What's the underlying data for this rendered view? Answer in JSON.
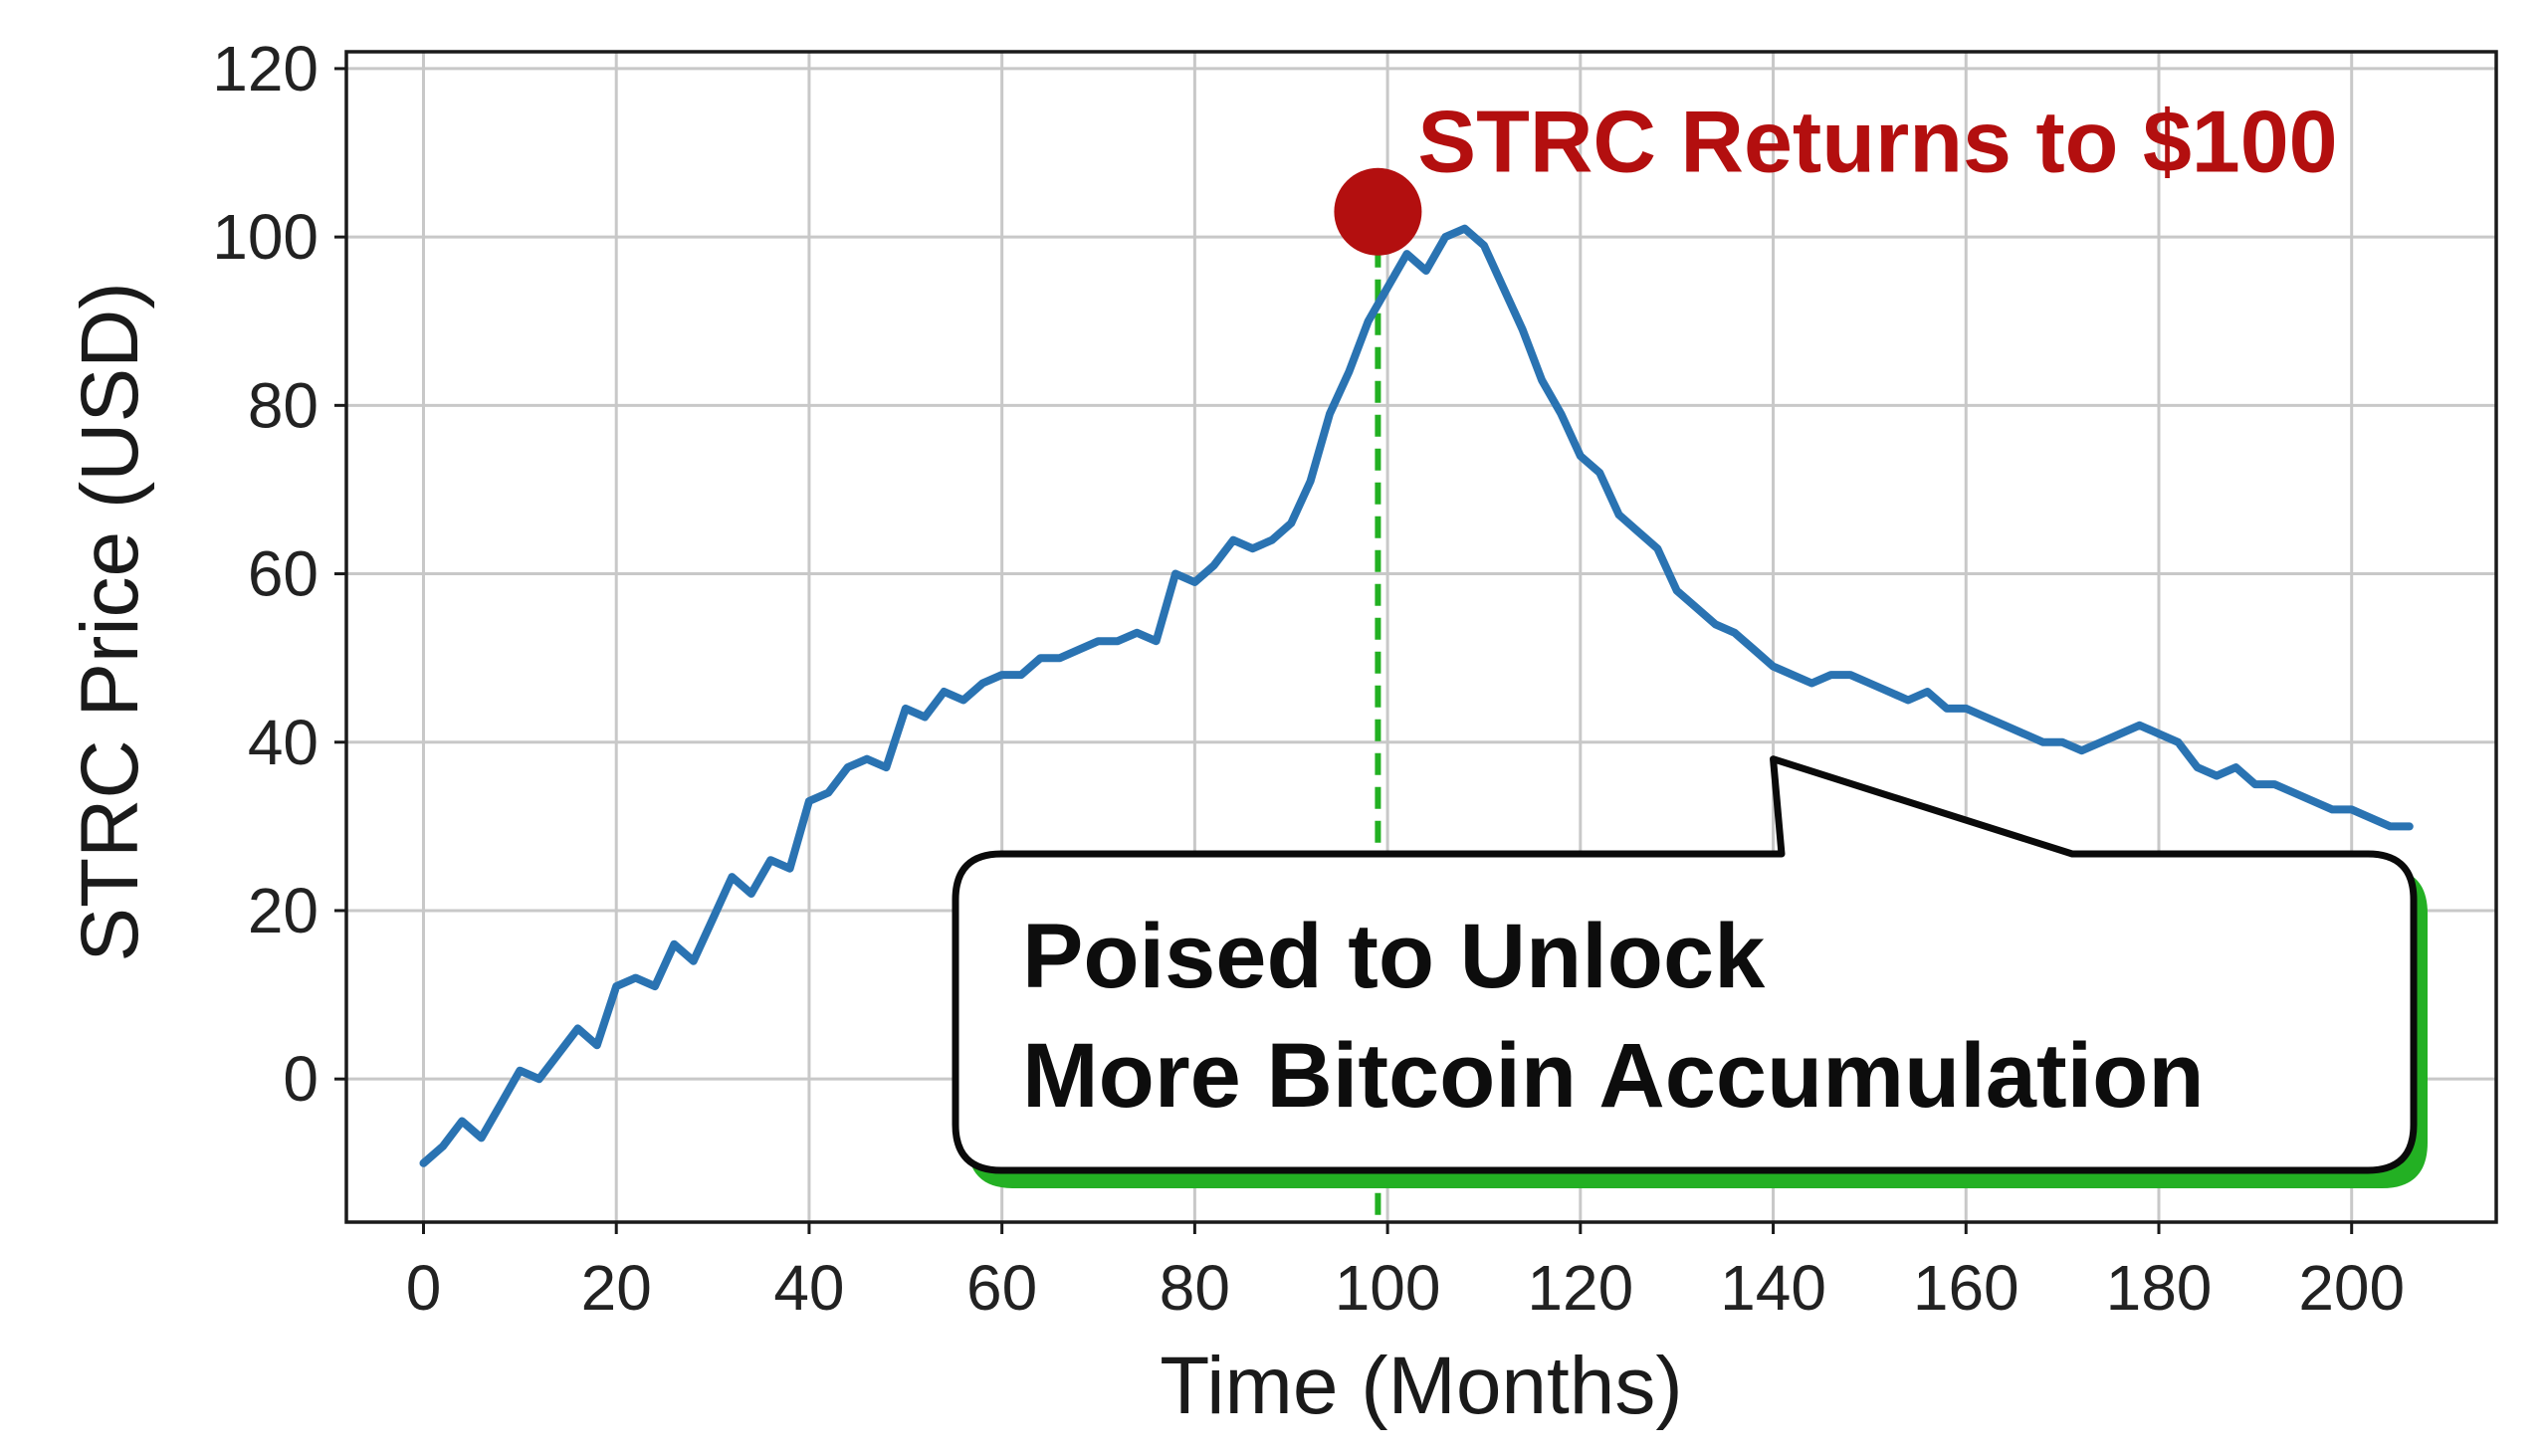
{
  "chart_data": {
    "type": "line",
    "xlabel": "Time (Months)",
    "ylabel": "STRC Price (USD)",
    "xlim": [
      -8,
      215
    ],
    "ylim": [
      -17,
      122
    ],
    "x_ticks": [
      0,
      20,
      40,
      60,
      80,
      100,
      120,
      140,
      160,
      180,
      200
    ],
    "x_tick_labels": [
      "0",
      "20",
      "40",
      "60",
      "80",
      "100",
      "120",
      "140",
      "160",
      "180",
      "200"
    ],
    "y_ticks": [
      0,
      20,
      40,
      60,
      80,
      100,
      120
    ],
    "y_tick_labels": [
      "0",
      "20",
      "40",
      "60",
      "80",
      "100",
      "120"
    ],
    "grid": true,
    "series": [
      {
        "color": "#2a73b2",
        "x": [
          0,
          2,
          4,
          6,
          8,
          10,
          12,
          14,
          16,
          18,
          20,
          22,
          24,
          26,
          28,
          30,
          32,
          34,
          36,
          38,
          40,
          42,
          44,
          46,
          48,
          50,
          52,
          54,
          56,
          58,
          60,
          62,
          64,
          66,
          68,
          70,
          72,
          74,
          76,
          78,
          80,
          82,
          84,
          86,
          88,
          90,
          92,
          94,
          96,
          98,
          100,
          102,
          104,
          106,
          108,
          110,
          112,
          114,
          116,
          118,
          120,
          122,
          124,
          126,
          128,
          130,
          132,
          134,
          136,
          138,
          140,
          142,
          144,
          146,
          148,
          150,
          152,
          154,
          156,
          158,
          160,
          162,
          164,
          166,
          168,
          170,
          172,
          174,
          176,
          178,
          180,
          182,
          184,
          186,
          188,
          190,
          192,
          194,
          196,
          198,
          200,
          202,
          204,
          206
        ],
        "y": [
          -10,
          -8,
          -5,
          -7,
          -3,
          1,
          0,
          3,
          6,
          4,
          11,
          12,
          11,
          16,
          14,
          19,
          24,
          22,
          26,
          25,
          33,
          34,
          37,
          38,
          37,
          44,
          43,
          46,
          45,
          47,
          48,
          48,
          50,
          50,
          51,
          52,
          52,
          53,
          52,
          60,
          59,
          61,
          64,
          63,
          64,
          66,
          71,
          79,
          84,
          90,
          94,
          98,
          96,
          100,
          101,
          99,
          94,
          89,
          83,
          79,
          74,
          72,
          67,
          65,
          63,
          58,
          56,
          54,
          53,
          51,
          49,
          48,
          47,
          48,
          48,
          47,
          46,
          45,
          46,
          44,
          44,
          43,
          42,
          41,
          40,
          40,
          39,
          40,
          41,
          42,
          41,
          40,
          37,
          36,
          37,
          35,
          35,
          34,
          33,
          32,
          32,
          31,
          30,
          30
        ]
      }
    ],
    "annotations": [
      {
        "text": "STRC Returns to $100",
        "x": 99,
        "y": 103,
        "color": "#b30f0f"
      },
      {
        "text_lines": [
          "Poised to Unlock",
          "More Bitcoin Accumulation"
        ],
        "points_to": {
          "x": 140,
          "y": 38
        }
      }
    ],
    "marker_line": {
      "x": 99,
      "color": "#22b022",
      "style": "dashed"
    }
  }
}
